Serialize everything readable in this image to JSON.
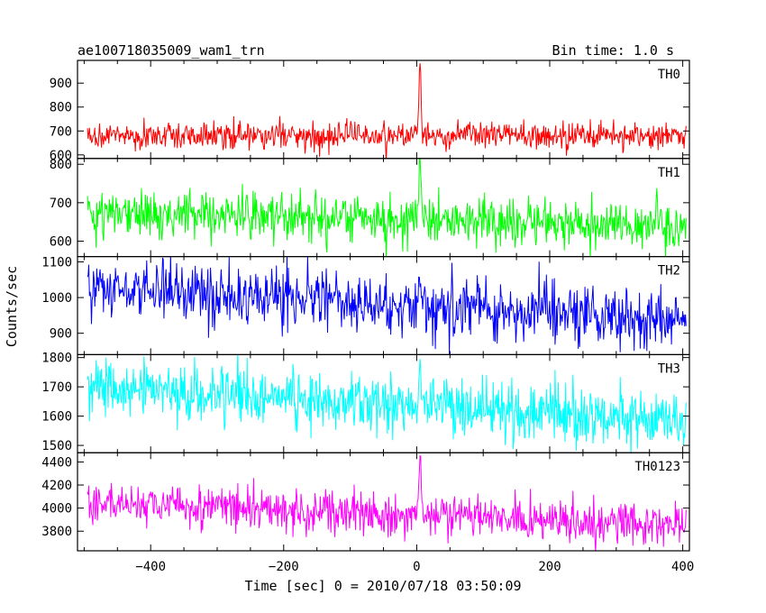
{
  "header": {
    "title": "ae100718035009_wam1_trn",
    "bin_time": "Bin time: 1.0 s"
  },
  "chart_data": {
    "type": "line",
    "xlabel": "Time [sec] 0 = 2010/07/18 03:50:09",
    "ylabel": "Counts/sec",
    "xlim": [
      -510,
      410
    ],
    "x_ticks": [
      -400,
      -200,
      0,
      200,
      400
    ],
    "x_tick_labels": [
      "−400",
      "−200",
      "0",
      "200",
      "400"
    ],
    "x_step": 1,
    "panels": [
      {
        "name": "TH0",
        "color": "#ff0000",
        "ylim": [
          585,
          995
        ],
        "yticks": [
          600,
          700,
          800,
          900
        ],
        "baseline_start": 680,
        "baseline_end": 680,
        "noise": 28,
        "spike_peak": 995
      },
      {
        "name": "TH1",
        "color": "#00ff00",
        "ylim": [
          560,
          815
        ],
        "yticks": [
          600,
          700,
          800
        ],
        "baseline_start": 675,
        "baseline_end": 640,
        "noise": 30,
        "spike_peak": 810
      },
      {
        "name": "TH2",
        "color": "#0000ff",
        "ylim": [
          840,
          1115
        ],
        "yticks": [
          900,
          1000,
          1100
        ],
        "baseline_start": 1030,
        "baseline_end": 940,
        "noise": 42,
        "spike_peak": 1060
      },
      {
        "name": "TH3",
        "color": "#00ffff",
        "ylim": [
          1475,
          1810
        ],
        "yticks": [
          1500,
          1600,
          1700,
          1800
        ],
        "baseline_start": 1700,
        "baseline_end": 1580,
        "noise": 48,
        "spike_peak": 1800
      },
      {
        "name": "TH0123",
        "color": "#ff00ff",
        "ylim": [
          3630,
          4480
        ],
        "yticks": [
          3800,
          4000,
          4200,
          4400
        ],
        "baseline_start": 4050,
        "baseline_end": 3850,
        "noise": 90,
        "spike_peak": 4480
      }
    ]
  }
}
